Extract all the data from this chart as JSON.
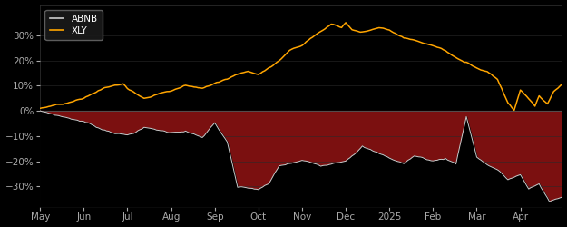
{
  "background_color": "#000000",
  "plot_bg_color": "#000000",
  "abnb_color": "#cccccc",
  "xly_color": "#FFA500",
  "fill_dark_red": "#7B1010",
  "fill_black": "#000000",
  "legend_face_color": "#1a1a1a",
  "legend_edge_color": "#666666",
  "tick_color": "#aaaaaa",
  "grid_color": "#2a2a2a",
  "ylim": [
    -0.38,
    0.42
  ],
  "yticks": [
    -0.3,
    -0.2,
    -0.1,
    0.0,
    0.1,
    0.2,
    0.3
  ],
  "x_labels": [
    "May",
    "Jun",
    "Jul",
    "Aug",
    "Sep",
    "Oct",
    "Nov",
    "Dec",
    "2025",
    "Feb",
    "Mar",
    "Apr"
  ],
  "n_points": 252,
  "abnb_keypoints": [
    [
      0,
      0.0
    ],
    [
      10,
      -0.02
    ],
    [
      21,
      -0.04
    ],
    [
      30,
      -0.07
    ],
    [
      42,
      -0.09
    ],
    [
      50,
      -0.06
    ],
    [
      63,
      -0.08
    ],
    [
      70,
      -0.07
    ],
    [
      78,
      -0.1
    ],
    [
      84,
      -0.04
    ],
    [
      90,
      -0.12
    ],
    [
      95,
      -0.3
    ],
    [
      105,
      -0.31
    ],
    [
      110,
      -0.29
    ],
    [
      115,
      -0.22
    ],
    [
      126,
      -0.2
    ],
    [
      135,
      -0.22
    ],
    [
      147,
      -0.19
    ],
    [
      155,
      -0.13
    ],
    [
      160,
      -0.15
    ],
    [
      168,
      -0.18
    ],
    [
      175,
      -0.2
    ],
    [
      180,
      -0.17
    ],
    [
      189,
      -0.19
    ],
    [
      195,
      -0.18
    ],
    [
      200,
      -0.2
    ],
    [
      205,
      -0.01
    ],
    [
      210,
      -0.17
    ],
    [
      215,
      -0.2
    ],
    [
      220,
      -0.22
    ],
    [
      225,
      -0.26
    ],
    [
      231,
      -0.24
    ],
    [
      235,
      -0.3
    ],
    [
      240,
      -0.28
    ],
    [
      245,
      -0.35
    ],
    [
      251,
      -0.33
    ]
  ],
  "xly_keypoints": [
    [
      0,
      0.01
    ],
    [
      10,
      0.02
    ],
    [
      21,
      0.04
    ],
    [
      30,
      0.08
    ],
    [
      40,
      0.1
    ],
    [
      42,
      0.08
    ],
    [
      50,
      0.04
    ],
    [
      55,
      0.05
    ],
    [
      63,
      0.07
    ],
    [
      70,
      0.09
    ],
    [
      78,
      0.08
    ],
    [
      84,
      0.1
    ],
    [
      90,
      0.12
    ],
    [
      100,
      0.15
    ],
    [
      105,
      0.14
    ],
    [
      110,
      0.17
    ],
    [
      115,
      0.2
    ],
    [
      120,
      0.24
    ],
    [
      126,
      0.26
    ],
    [
      130,
      0.29
    ],
    [
      135,
      0.32
    ],
    [
      140,
      0.35
    ],
    [
      145,
      0.34
    ],
    [
      147,
      0.36
    ],
    [
      150,
      0.33
    ],
    [
      155,
      0.32
    ],
    [
      160,
      0.33
    ],
    [
      163,
      0.34
    ],
    [
      168,
      0.33
    ],
    [
      175,
      0.3
    ],
    [
      180,
      0.29
    ],
    [
      189,
      0.27
    ],
    [
      195,
      0.25
    ],
    [
      200,
      0.22
    ],
    [
      205,
      0.2
    ],
    [
      210,
      0.18
    ],
    [
      215,
      0.17
    ],
    [
      220,
      0.14
    ],
    [
      225,
      0.05
    ],
    [
      228,
      0.02
    ],
    [
      231,
      0.1
    ],
    [
      235,
      0.07
    ],
    [
      238,
      0.04
    ],
    [
      240,
      0.08
    ],
    [
      244,
      0.05
    ],
    [
      247,
      0.1
    ],
    [
      251,
      0.13
    ]
  ]
}
